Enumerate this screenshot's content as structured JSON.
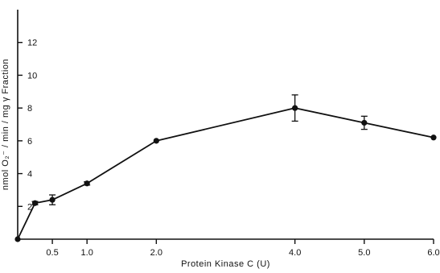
{
  "chart_data": {
    "type": "line",
    "title": "",
    "xlabel": "Protein Kinase C (U)",
    "ylabel": "nmol O₂⁻ / min / mg γ Fraction",
    "xlim": [
      0,
      6.0
    ],
    "ylim": [
      0,
      14
    ],
    "grid": false,
    "legend": "none",
    "x_ticks": [
      {
        "value": 0.5,
        "label": "0.5"
      },
      {
        "value": 1.0,
        "label": "1.0"
      },
      {
        "value": 2.0,
        "label": "2.0"
      },
      {
        "value": 4.0,
        "label": "4.0"
      },
      {
        "value": 5.0,
        "label": "5.0"
      },
      {
        "value": 6.0,
        "label": "6.0"
      }
    ],
    "y_ticks": [
      {
        "value": 2,
        "label": "2"
      },
      {
        "value": 4,
        "label": "4"
      },
      {
        "value": 6,
        "label": "6"
      },
      {
        "value": 8,
        "label": "8"
      },
      {
        "value": 10,
        "label": "10"
      },
      {
        "value": 12,
        "label": "12"
      }
    ],
    "series": [
      {
        "points": [
          {
            "x": 0.0,
            "y": 0.0,
            "err": 0
          },
          {
            "x": 0.25,
            "y": 2.2,
            "err": 0.1
          },
          {
            "x": 0.5,
            "y": 2.4,
            "err": 0.3
          },
          {
            "x": 1.0,
            "y": 3.4,
            "err": 0.1
          },
          {
            "x": 2.0,
            "y": 6.0,
            "err": 0.05
          },
          {
            "x": 4.0,
            "y": 8.0,
            "err": 0.8
          },
          {
            "x": 5.0,
            "y": 7.1,
            "err": 0.4
          },
          {
            "x": 6.0,
            "y": 6.2,
            "err": 0.05
          }
        ]
      }
    ]
  }
}
